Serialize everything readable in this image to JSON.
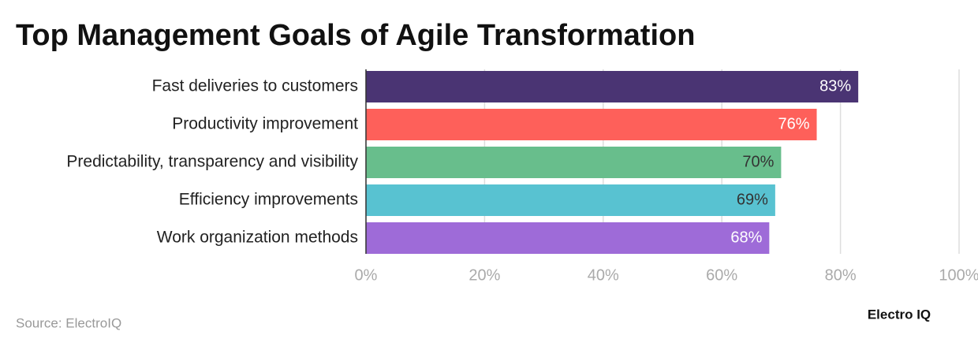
{
  "chart_data": {
    "type": "bar",
    "orientation": "horizontal",
    "title": "Top Management Goals of Agile Transformation",
    "categories": [
      "Fast deliveries to customers",
      "Productivity improvement",
      "Predictability, transparency and visibility",
      "Efficiency improvements",
      "Work organization methods"
    ],
    "values": [
      83,
      76,
      70,
      69,
      68
    ],
    "value_labels": [
      "83%",
      "76%",
      "70%",
      "69%",
      "68%"
    ],
    "colors": [
      "#4a3473",
      "#fe605a",
      "#68be8c",
      "#58c2d1",
      "#9e6bd8"
    ],
    "xlim": [
      0,
      100
    ],
    "xticks": [
      {
        "value": 0,
        "label": "0%"
      },
      {
        "value": 20,
        "label": "20%"
      },
      {
        "value": 40,
        "label": "40%"
      },
      {
        "value": 60,
        "label": "60%"
      },
      {
        "value": 80,
        "label": "80%"
      },
      {
        "value": 100,
        "label": "100%"
      }
    ],
    "grid": true,
    "source": "Source: ElectroIQ",
    "logo": "Electro IQ"
  }
}
